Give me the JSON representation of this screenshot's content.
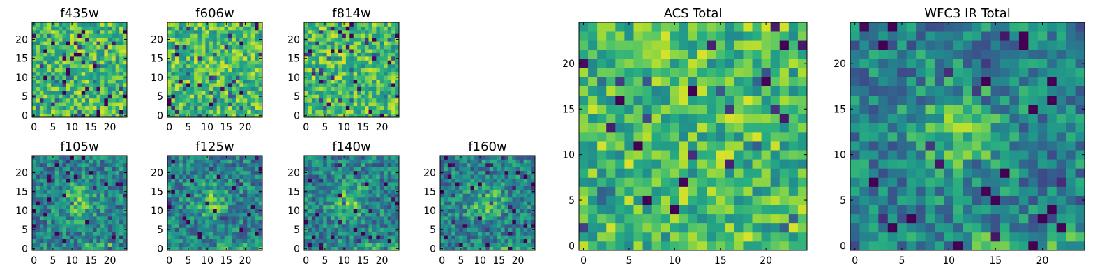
{
  "figure": {
    "background": "#ffffff"
  },
  "chart_data": [
    {
      "id": "f435w",
      "type": "heatmap",
      "title": "f435w",
      "colormap": "viridis",
      "grid_size": 25,
      "xticks": [
        0,
        5,
        10,
        15,
        20
      ],
      "yticks": [
        0,
        5,
        10,
        15,
        20
      ],
      "xlim": [
        -0.5,
        24.5
      ],
      "ylim": [
        -0.5,
        24.5
      ],
      "character": "uniform noise"
    },
    {
      "id": "f606w",
      "type": "heatmap",
      "title": "f606w",
      "colormap": "viridis",
      "grid_size": 25,
      "xticks": [
        0,
        5,
        10,
        15,
        20
      ],
      "yticks": [
        0,
        5,
        10,
        15,
        20
      ],
      "xlim": [
        -0.5,
        24.5
      ],
      "ylim": [
        -0.5,
        24.5
      ],
      "character": "uniform noise"
    },
    {
      "id": "f814w",
      "type": "heatmap",
      "title": "f814w",
      "colormap": "viridis",
      "grid_size": 25,
      "xticks": [
        0,
        5,
        10,
        15,
        20
      ],
      "yticks": [
        0,
        5,
        10,
        15,
        20
      ],
      "xlim": [
        -0.5,
        24.5
      ],
      "ylim": [
        -0.5,
        24.5
      ],
      "character": "uniform noise"
    },
    {
      "id": "f105w",
      "type": "heatmap",
      "title": "f105w",
      "colormap": "viridis",
      "grid_size": 25,
      "xticks": [
        0,
        5,
        10,
        15,
        20
      ],
      "yticks": [
        0,
        5,
        10,
        15,
        20
      ],
      "xlim": [
        -0.5,
        24.5
      ],
      "ylim": [
        -0.5,
        24.5
      ],
      "character": "smooth central source"
    },
    {
      "id": "f125w",
      "type": "heatmap",
      "title": "f125w",
      "colormap": "viridis",
      "grid_size": 25,
      "xticks": [
        0,
        5,
        10,
        15,
        20
      ],
      "yticks": [
        0,
        5,
        10,
        15,
        20
      ],
      "xlim": [
        -0.5,
        24.5
      ],
      "ylim": [
        -0.5,
        24.5
      ],
      "character": "smooth central source"
    },
    {
      "id": "f140w",
      "type": "heatmap",
      "title": "f140w",
      "colormap": "viridis",
      "grid_size": 25,
      "xticks": [
        0,
        5,
        10,
        15,
        20
      ],
      "yticks": [
        0,
        5,
        10,
        15,
        20
      ],
      "xlim": [
        -0.5,
        24.5
      ],
      "ylim": [
        -0.5,
        24.5
      ],
      "character": "smooth central source"
    },
    {
      "id": "f160w",
      "type": "heatmap",
      "title": "f160w",
      "colormap": "viridis",
      "grid_size": 25,
      "xticks": [
        0,
        5,
        10,
        15,
        20
      ],
      "yticks": [
        0,
        5,
        10,
        15,
        20
      ],
      "xlim": [
        -0.5,
        24.5
      ],
      "ylim": [
        -0.5,
        24.5
      ],
      "character": "smooth central source"
    },
    {
      "id": "acs-total",
      "type": "heatmap",
      "title": "ACS Total",
      "colormap": "viridis",
      "grid_size": 25,
      "xticks": [
        0,
        5,
        10,
        15,
        20
      ],
      "yticks": [
        0,
        5,
        10,
        15,
        20
      ],
      "xlim": [
        -0.5,
        24.5
      ],
      "ylim": [
        -0.5,
        24.5
      ],
      "character": "uniform noise"
    },
    {
      "id": "wfc3-ir-total",
      "type": "heatmap",
      "title": "WFC3 IR Total",
      "colormap": "viridis",
      "grid_size": 25,
      "xticks": [
        0,
        5,
        10,
        15,
        20
      ],
      "yticks": [
        0,
        5,
        10,
        15,
        20
      ],
      "xlim": [
        -0.5,
        24.5
      ],
      "ylim": [
        -0.5,
        24.5
      ],
      "character": "smooth central source"
    }
  ]
}
